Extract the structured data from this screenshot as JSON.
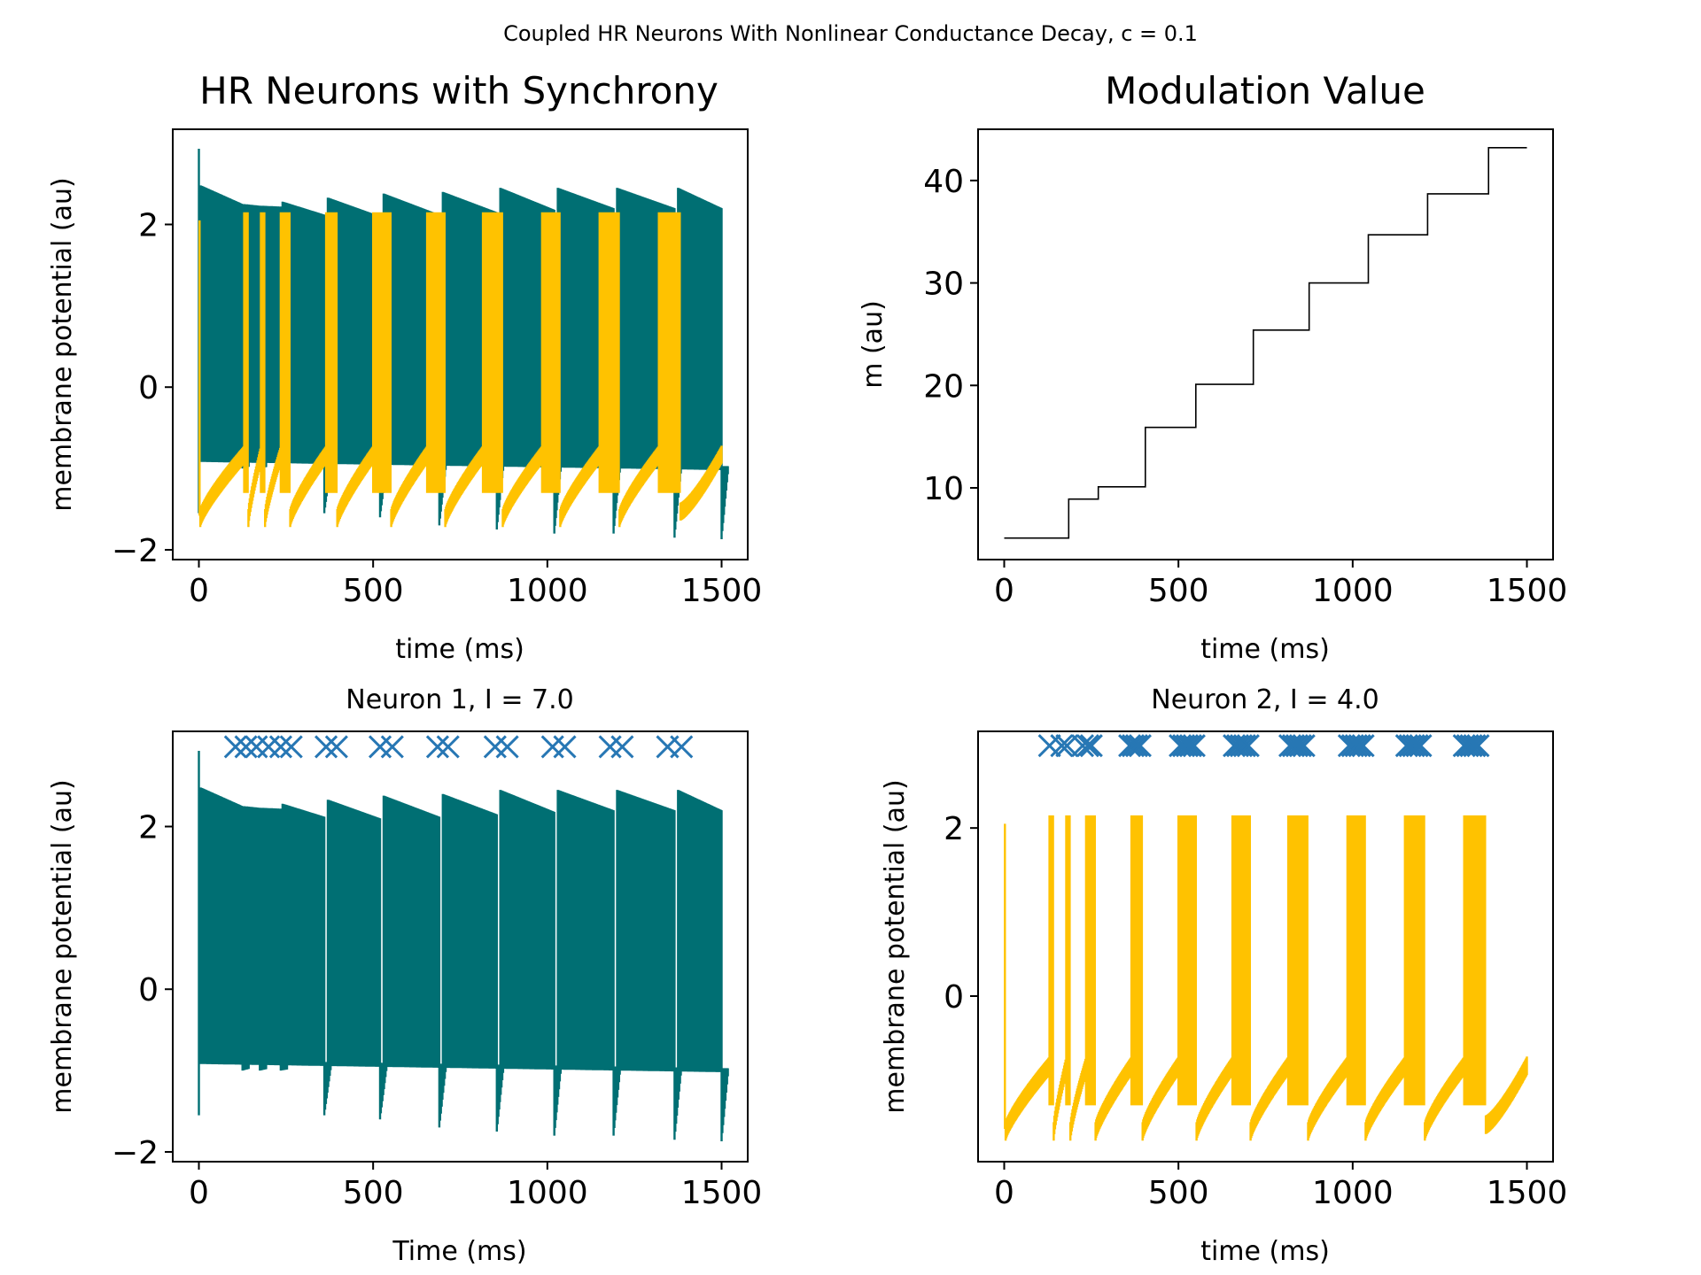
{
  "figure": {
    "suptitle": "Coupled HR Neurons With Nonlinear Conductance Decay, c = 0.1"
  },
  "colors": {
    "neuron1": "#006f73",
    "neuron2": "#ffc200",
    "spikes": "#2777b4",
    "modulation": "#000000"
  },
  "chart_data": [
    {
      "id": "sync",
      "type": "line",
      "title": "HR Neurons with Synchrony",
      "xlabel": "time (ms)",
      "ylabel": "membrane potential (au)",
      "xlim": [
        -75,
        1575
      ],
      "ylim": [
        -2.12,
        3.17
      ],
      "xticks": [
        0,
        500,
        1000,
        1500
      ],
      "yticks": [
        -2,
        0,
        2
      ],
      "grid": false,
      "series": [
        {
          "ref": "neuron1",
          "color": "#006f73"
        },
        {
          "ref": "neuron2",
          "color": "#ffc200"
        }
      ]
    },
    {
      "id": "modulation",
      "type": "line",
      "title": "Modulation Value",
      "xlabel": "time (ms)",
      "ylabel": "m (au)",
      "xlim": [
        -75,
        1575
      ],
      "ylim": [
        3.0,
        45.0
      ],
      "xticks": [
        0,
        500,
        1000,
        1500
      ],
      "yticks": [
        10,
        20,
        30,
        40
      ],
      "grid": false,
      "step_x": [
        0,
        185,
        185,
        270,
        270,
        405,
        405,
        550,
        550,
        715,
        715,
        875,
        875,
        1045,
        1045,
        1215,
        1215,
        1390,
        1390,
        1500
      ],
      "step_y": [
        5.1,
        5.1,
        8.9,
        8.9,
        10.1,
        10.1,
        15.9,
        15.9,
        20.1,
        20.1,
        25.4,
        25.4,
        30.0,
        30.0,
        34.7,
        34.7,
        38.7,
        38.7,
        43.2,
        43.2
      ]
    },
    {
      "id": "neuron1",
      "type": "line",
      "title": "Neuron 1, I = 7.0",
      "xlabel": "Time (ms)",
      "ylabel": "membrane potential (au)",
      "xlim": [
        -75,
        1575
      ],
      "ylim": [
        -2.12,
        3.17
      ],
      "xticks": [
        0,
        500,
        1000,
        1500
      ],
      "yticks": [
        -2,
        0,
        2
      ],
      "grid": false,
      "color": "#006f73",
      "initial_spike": {
        "x": 0,
        "ymax": 2.93,
        "ymin": -1.55
      },
      "baseline": {
        "x": [
          5,
          1500
        ],
        "y": [
          -0.87,
          -0.97
        ]
      },
      "envelope_top": {
        "x": [
          5,
          1500
        ],
        "y": [
          2.48,
          2.2
        ]
      },
      "bursts": [
        {
          "t0": 5,
          "t1": 125,
          "top0": 2.48,
          "top1": 2.25,
          "trough": -1.0
        },
        {
          "t0": 130,
          "t1": 175,
          "top0": 2.25,
          "top1": 2.23,
          "trough": -1.0
        },
        {
          "t0": 180,
          "t1": 235,
          "top0": 2.23,
          "top1": 2.22,
          "trough": -1.0
        },
        {
          "t0": 240,
          "t1": 360,
          "top0": 2.28,
          "top1": 2.12,
          "trough": -1.55
        },
        {
          "t0": 370,
          "t1": 520,
          "top0": 2.33,
          "top1": 2.1,
          "trough": -1.6
        },
        {
          "t0": 530,
          "t1": 690,
          "top0": 2.38,
          "top1": 2.12,
          "trough": -1.7
        },
        {
          "t0": 700,
          "t1": 855,
          "top0": 2.4,
          "top1": 2.15,
          "trough": -1.75
        },
        {
          "t0": 865,
          "t1": 1020,
          "top0": 2.45,
          "top1": 2.18,
          "trough": -1.8
        },
        {
          "t0": 1030,
          "t1": 1190,
          "top0": 2.45,
          "top1": 2.2,
          "trough": -1.8
        },
        {
          "t0": 1200,
          "t1": 1365,
          "top0": 2.45,
          "top1": 2.2,
          "trough": -1.85
        },
        {
          "t0": 1375,
          "t1": 1500,
          "top0": 2.45,
          "top1": 2.2,
          "trough": -1.87
        }
      ],
      "spike_markers": {
        "y": 2.98,
        "x": [
          105,
          135,
          165,
          200,
          235,
          265,
          365,
          395,
          520,
          555,
          685,
          715,
          850,
          885,
          1015,
          1050,
          1180,
          1215,
          1345,
          1385
        ]
      }
    },
    {
      "id": "neuron2",
      "type": "line",
      "title": "Neuron 2, I = 4.0",
      "xlabel": "time (ms)",
      "ylabel": "membrane potential (au)",
      "xlim": [
        -75,
        1575
      ],
      "ylim": [
        -1.97,
        3.15
      ],
      "xticks": [
        0,
        500,
        1000,
        1500
      ],
      "yticks": [
        0,
        2
      ],
      "grid": false,
      "color": "#ffc200",
      "initial_spike": {
        "x": 2,
        "ymax": 2.05,
        "ymin": -1.58
      },
      "slow_wave": {
        "rise_from": -1.58,
        "rise_to": -0.8
      },
      "bursts": [
        {
          "t0": 130,
          "t1": 140,
          "peak": 2.15,
          "bottom": -1.3
        },
        {
          "t0": 178,
          "t1": 188,
          "peak": 2.15,
          "bottom": -1.3
        },
        {
          "t0": 235,
          "t1": 260,
          "peak": 2.15,
          "bottom": -1.3
        },
        {
          "t0": 365,
          "t1": 395,
          "peak": 2.15,
          "bottom": -1.3
        },
        {
          "t0": 500,
          "t1": 550,
          "peak": 2.15,
          "bottom": -1.3
        },
        {
          "t0": 655,
          "t1": 705,
          "peak": 2.15,
          "bottom": -1.3
        },
        {
          "t0": 815,
          "t1": 870,
          "peak": 2.15,
          "bottom": -1.3
        },
        {
          "t0": 985,
          "t1": 1035,
          "peak": 2.15,
          "bottom": -1.3
        },
        {
          "t0": 1150,
          "t1": 1205,
          "peak": 2.15,
          "bottom": -1.3
        },
        {
          "t0": 1320,
          "t1": 1380,
          "peak": 2.15,
          "bottom": -1.3
        }
      ],
      "end_ramp": {
        "x": [
          1382,
          1500
        ],
        "y": [
          -1.5,
          -0.8
        ]
      },
      "spike_markers": {
        "y": 2.98,
        "x": [
          130,
          165,
          180,
          225,
          240,
          250,
          360,
          370,
          380,
          390,
          505,
          515,
          525,
          535,
          545,
          660,
          670,
          680,
          690,
          700,
          820,
          830,
          840,
          850,
          860,
          990,
          1000,
          1010,
          1020,
          1030,
          1155,
          1165,
          1175,
          1185,
          1195,
          1320,
          1330,
          1340,
          1350,
          1360
        ]
      }
    }
  ]
}
